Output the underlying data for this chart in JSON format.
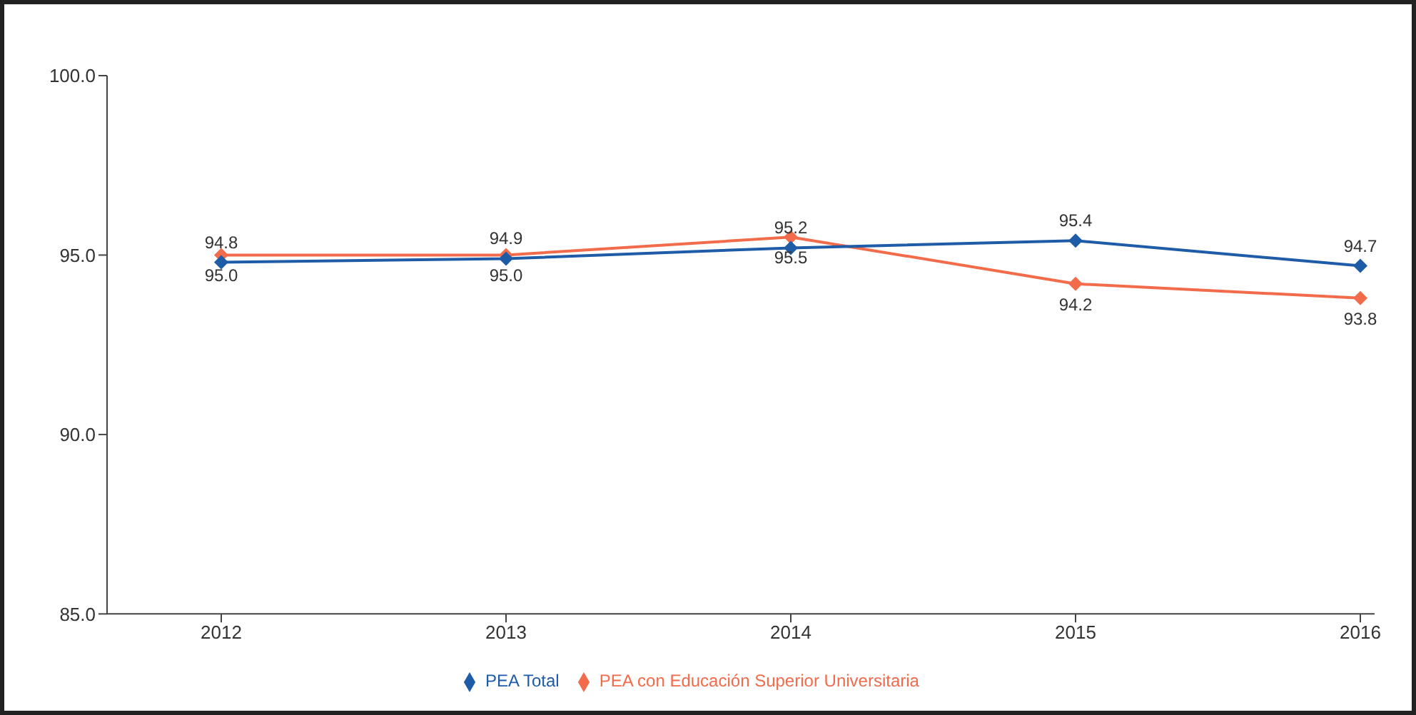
{
  "chart_data": {
    "type": "line",
    "categories": [
      "2012",
      "2013",
      "2014",
      "2015",
      "2016"
    ],
    "series": [
      {
        "name": "PEA con Educación Superior Universitaria",
        "color": "#f26b4a",
        "values": [
          95.0,
          95.0,
          95.5,
          94.2,
          93.8
        ],
        "value_labels": [
          "95.0",
          "95.0",
          "95.5",
          "94.2",
          "93.8"
        ]
      },
      {
        "name": "PEA Total",
        "color": "#1f5ca8",
        "values": [
          94.8,
          94.9,
          95.2,
          95.4,
          94.7
        ],
        "value_labels": [
          "94.8",
          "94.9",
          "95.2",
          "95.4",
          "94.7"
        ]
      }
    ],
    "ylim": [
      85,
      100
    ],
    "yticks": [
      {
        "value": 85,
        "label": "85.0"
      },
      {
        "value": 90,
        "label": "90.0"
      },
      {
        "value": 95,
        "label": "95.0"
      },
      {
        "value": 100,
        "label": "100.0"
      }
    ],
    "grid": false,
    "legend": "bottom",
    "marker": "diamond",
    "line_style": "solid"
  }
}
